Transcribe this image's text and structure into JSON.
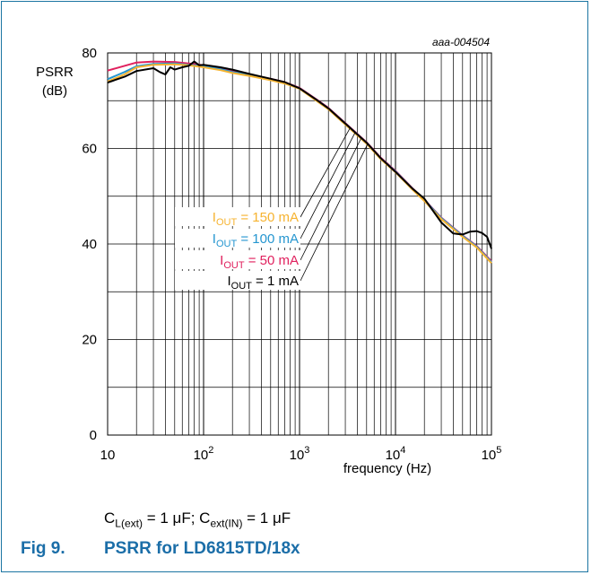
{
  "figure": {
    "number_label": "Fig 9.",
    "title": "PSRR for LD6815TD/18x",
    "condition": {
      "cl_main": "C",
      "cl_sub": "L(ext)",
      "cl_value": " = 1 μF; ",
      "cin_main": "C",
      "cin_sub": "ext(IN)",
      "cin_value": " = 1 μF"
    }
  },
  "colors": {
    "frame": "#1b75a2",
    "title": "#1b6ea8",
    "iout_150": "#f6b330",
    "iout_100": "#2596d0",
    "iout_50": "#e0215e",
    "iout_1": "#000000"
  },
  "chart_data": {
    "type": "line",
    "title": "",
    "ref_id": "aaa-004504",
    "xlabel": "frequency (Hz)",
    "ylabel_line1": "PSRR",
    "ylabel_line2": "(dB)",
    "x_scale": "log",
    "xlim": [
      10,
      100000
    ],
    "ylim": [
      0,
      80
    ],
    "grid": true,
    "x_ticks": [
      {
        "value": 10,
        "base": "10",
        "exp": ""
      },
      {
        "value": 100,
        "base": "10",
        "exp": "2"
      },
      {
        "value": 1000,
        "base": "10",
        "exp": "3"
      },
      {
        "value": 10000,
        "base": "10",
        "exp": "4"
      },
      {
        "value": 100000,
        "base": "10",
        "exp": "5"
      }
    ],
    "y_ticks": [
      0,
      20,
      40,
      60,
      80
    ],
    "series": [
      {
        "label_main": "I",
        "label_sub": "OUT",
        "label_value": " =  150 mA",
        "color": "#f6b330",
        "x": [
          10,
          15,
          20,
          30,
          50,
          70,
          100,
          150,
          200,
          300,
          500,
          700,
          1000,
          1500,
          2000,
          3000,
          5000,
          7000,
          10000,
          15000,
          20000,
          30000,
          50000,
          70000,
          100000
        ],
        "y": [
          74,
          75.5,
          77,
          77.5,
          77.6,
          77.4,
          77,
          76.4,
          75.8,
          75.2,
          74.3,
          73.6,
          72.5,
          70,
          68.2,
          65,
          61,
          57.8,
          55,
          51.4,
          49,
          45.2,
          41.5,
          39.3,
          36
        ]
      },
      {
        "label_main": "I",
        "label_sub": "OUT",
        "label_value": " =  100 mA",
        "color": "#2596d0",
        "x": [
          10,
          15,
          20,
          30,
          50,
          70,
          100,
          150,
          200,
          300,
          500,
          700,
          1000,
          1500,
          2000,
          3000,
          5000,
          7000,
          10000,
          15000,
          20000,
          30000,
          50000,
          70000,
          100000
        ],
        "y": [
          74.5,
          76,
          77.2,
          77.7,
          77.8,
          77.5,
          77.2,
          76.6,
          76,
          75.4,
          74.5,
          73.8,
          72.6,
          70.2,
          68.4,
          65.2,
          61.2,
          58,
          55.2,
          51.6,
          49.2,
          45.4,
          41.7,
          39.5,
          36.2
        ]
      },
      {
        "label_main": "I",
        "label_sub": "OUT",
        "label_value": " =  50 mA",
        "color": "#e0215e",
        "x": [
          10,
          15,
          20,
          30,
          50,
          70,
          100,
          150,
          200,
          300,
          500,
          700,
          1000,
          1500,
          2000,
          3000,
          5000,
          7000,
          10000,
          15000,
          20000,
          30000,
          50000,
          70000,
          100000
        ],
        "y": [
          76.3,
          77.3,
          78,
          78.2,
          78.1,
          77.8,
          77.4,
          76.8,
          76.2,
          75.5,
          74.6,
          73.9,
          72.7,
          70.3,
          68.5,
          65.3,
          61.3,
          58.1,
          55.3,
          51.7,
          49.3,
          45.5,
          41.8,
          39.6,
          36.4
        ]
      },
      {
        "label_main": "I",
        "label_sub": "OUT",
        "label_value": " =  1 mA",
        "color": "#000000",
        "x": [
          10,
          15,
          20,
          30,
          35,
          40,
          45,
          50,
          60,
          70,
          80,
          90,
          100,
          150,
          200,
          300,
          500,
          700,
          1000,
          1500,
          2000,
          3000,
          5000,
          7000,
          10000,
          15000,
          20000,
          30000,
          40000,
          50000,
          60000,
          70000,
          80000,
          90000,
          100000
        ],
        "y": [
          73.8,
          75,
          76.2,
          76.8,
          76,
          75.5,
          77,
          76.5,
          77,
          77.3,
          78.2,
          77.4,
          77.5,
          77,
          76.5,
          75.6,
          74.6,
          73.9,
          72.6,
          70.2,
          68.4,
          65.2,
          61.2,
          58,
          55.1,
          51.6,
          49.5,
          44.5,
          42.2,
          42,
          42.6,
          42.7,
          42.3,
          41.5,
          39
        ]
      }
    ]
  }
}
